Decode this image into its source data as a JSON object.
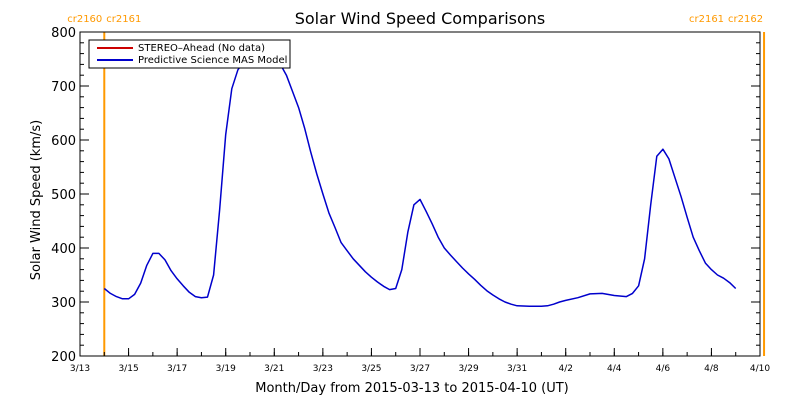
{
  "chart_data": {
    "type": "line",
    "title": "Solar Wind Speed Comparisons",
    "xlabel": "Month/Day from 2015-03-13 to 2015-04-10 (UT)",
    "ylabel": "Solar Wind Speed (km/s)",
    "xlim": [
      "2015-03-13",
      "2015-04-10"
    ],
    "ylim": [
      200,
      800
    ],
    "x_ticks": [
      {
        "date": "2015-03-13",
        "label": "3/13"
      },
      {
        "date": "2015-03-15",
        "label": "3/15"
      },
      {
        "date": "2015-03-17",
        "label": "3/17"
      },
      {
        "date": "2015-03-19",
        "label": "3/19"
      },
      {
        "date": "2015-03-21",
        "label": "3/21"
      },
      {
        "date": "2015-03-23",
        "label": "3/23"
      },
      {
        "date": "2015-03-25",
        "label": "3/25"
      },
      {
        "date": "2015-03-27",
        "label": "3/27"
      },
      {
        "date": "2015-03-29",
        "label": "3/29"
      },
      {
        "date": "2015-03-31",
        "label": "3/31"
      },
      {
        "date": "2015-04-02",
        "label": "4/2"
      },
      {
        "date": "2015-04-04",
        "label": "4/4"
      },
      {
        "date": "2015-04-06",
        "label": "4/6"
      },
      {
        "date": "2015-04-08",
        "label": "4/8"
      },
      {
        "date": "2015-04-10",
        "label": "4/10"
      }
    ],
    "y_ticks": [
      200,
      300,
      400,
      500,
      600,
      700,
      800
    ],
    "rotation_markers": [
      {
        "date": "2015-03-14 00:00",
        "left_label": "cr2160",
        "right_label": "cr2161",
        "color": "#ff9900"
      },
      {
        "date": "2015-04-10 04:00",
        "left_label": "cr2161",
        "right_label": "cr2162",
        "color": "#ff9900"
      }
    ],
    "legend": {
      "position": "top-left",
      "entries": [
        {
          "label": "STEREO–Ahead (No data)",
          "color": "#cc0000"
        },
        {
          "label": "Predictive Science MAS Model",
          "color": "#0000cc"
        }
      ]
    },
    "series": [
      {
        "name": "Predictive Science MAS Model",
        "color": "#0000cc",
        "points": [
          [
            "2015-03-14 00:00",
            325
          ],
          [
            "2015-03-14 06:00",
            316
          ],
          [
            "2015-03-14 12:00",
            310
          ],
          [
            "2015-03-14 18:00",
            306
          ],
          [
            "2015-03-15 00:00",
            306
          ],
          [
            "2015-03-15 06:00",
            314
          ],
          [
            "2015-03-15 12:00",
            335
          ],
          [
            "2015-03-15 18:00",
            368
          ],
          [
            "2015-03-16 00:00",
            390
          ],
          [
            "2015-03-16 06:00",
            390
          ],
          [
            "2015-03-16 12:00",
            378
          ],
          [
            "2015-03-16 18:00",
            358
          ],
          [
            "2015-03-17 00:00",
            343
          ],
          [
            "2015-03-17 06:00",
            330
          ],
          [
            "2015-03-17 12:00",
            318
          ],
          [
            "2015-03-17 18:00",
            310
          ],
          [
            "2015-03-18 00:00",
            308
          ],
          [
            "2015-03-18 06:00",
            309
          ],
          [
            "2015-03-18 12:00",
            350
          ],
          [
            "2015-03-18 18:00",
            470
          ],
          [
            "2015-03-19 00:00",
            610
          ],
          [
            "2015-03-19 06:00",
            695
          ],
          [
            "2015-03-19 12:00",
            730
          ],
          [
            "2015-03-19 18:00",
            745
          ],
          [
            "2015-03-20 00:00",
            752
          ],
          [
            "2015-03-20 12:00",
            755
          ],
          [
            "2015-03-21 00:00",
            752
          ],
          [
            "2015-03-21 06:00",
            740
          ],
          [
            "2015-03-21 12:00",
            720
          ],
          [
            "2015-03-21 18:00",
            690
          ],
          [
            "2015-03-22 00:00",
            660
          ],
          [
            "2015-03-22 06:00",
            622
          ],
          [
            "2015-03-22 12:00",
            578
          ],
          [
            "2015-03-22 18:00",
            537
          ],
          [
            "2015-03-23 00:00",
            500
          ],
          [
            "2015-03-23 06:00",
            465
          ],
          [
            "2015-03-23 12:00",
            438
          ],
          [
            "2015-03-23 18:00",
            410
          ],
          [
            "2015-03-24 00:00",
            395
          ],
          [
            "2015-03-24 06:00",
            380
          ],
          [
            "2015-03-24 12:00",
            368
          ],
          [
            "2015-03-24 18:00",
            356
          ],
          [
            "2015-03-25 00:00",
            346
          ],
          [
            "2015-03-25 06:00",
            337
          ],
          [
            "2015-03-25 12:00",
            329
          ],
          [
            "2015-03-25 18:00",
            323
          ],
          [
            "2015-03-26 00:00",
            325
          ],
          [
            "2015-03-26 06:00",
            360
          ],
          [
            "2015-03-26 12:00",
            430
          ],
          [
            "2015-03-26 18:00",
            480
          ],
          [
            "2015-03-27 00:00",
            490
          ],
          [
            "2015-03-27 06:00",
            468
          ],
          [
            "2015-03-27 12:00",
            445
          ],
          [
            "2015-03-27 18:00",
            420
          ],
          [
            "2015-03-28 00:00",
            400
          ],
          [
            "2015-03-28 06:00",
            387
          ],
          [
            "2015-03-28 12:00",
            375
          ],
          [
            "2015-03-28 18:00",
            363
          ],
          [
            "2015-03-29 00:00",
            352
          ],
          [
            "2015-03-29 06:00",
            342
          ],
          [
            "2015-03-29 12:00",
            331
          ],
          [
            "2015-03-29 18:00",
            321
          ],
          [
            "2015-03-30 00:00",
            313
          ],
          [
            "2015-03-30 06:00",
            306
          ],
          [
            "2015-03-30 12:00",
            300
          ],
          [
            "2015-03-30 18:00",
            296
          ],
          [
            "2015-03-31 00:00",
            293
          ],
          [
            "2015-03-31 12:00",
            292
          ],
          [
            "2015-04-01 00:00",
            292
          ],
          [
            "2015-04-01 06:00",
            293
          ],
          [
            "2015-04-01 12:00",
            296
          ],
          [
            "2015-04-01 18:00",
            300
          ],
          [
            "2015-04-02 00:00",
            303
          ],
          [
            "2015-04-02 12:00",
            308
          ],
          [
            "2015-04-03 00:00",
            315
          ],
          [
            "2015-04-03 12:00",
            316
          ],
          [
            "2015-04-04 00:00",
            312
          ],
          [
            "2015-04-04 12:00",
            310
          ],
          [
            "2015-04-04 18:00",
            316
          ],
          [
            "2015-04-05 00:00",
            330
          ],
          [
            "2015-04-05 06:00",
            380
          ],
          [
            "2015-04-05 12:00",
            480
          ],
          [
            "2015-04-05 18:00",
            570
          ],
          [
            "2015-04-06 00:00",
            583
          ],
          [
            "2015-04-06 06:00",
            565
          ],
          [
            "2015-04-06 12:00",
            530
          ],
          [
            "2015-04-06 18:00",
            495
          ],
          [
            "2015-04-07 00:00",
            457
          ],
          [
            "2015-04-07 06:00",
            420
          ],
          [
            "2015-04-07 12:00",
            395
          ],
          [
            "2015-04-07 18:00",
            372
          ],
          [
            "2015-04-08 00:00",
            360
          ],
          [
            "2015-04-08 06:00",
            350
          ],
          [
            "2015-04-08 12:00",
            344
          ],
          [
            "2015-04-08 18:00",
            336
          ],
          [
            "2015-04-09 00:00",
            325
          ]
        ]
      }
    ]
  }
}
